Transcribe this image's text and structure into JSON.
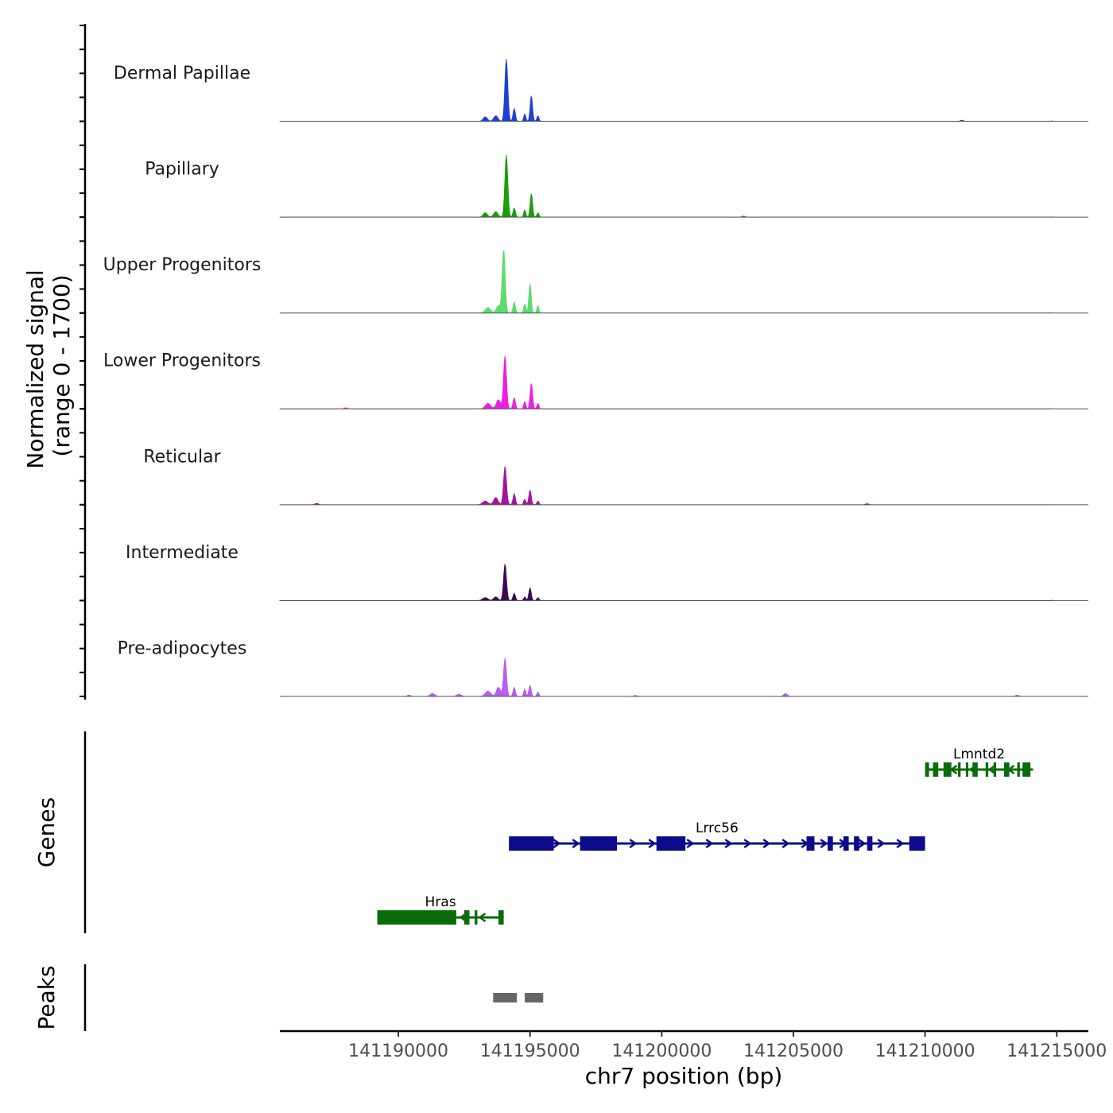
{
  "chart_data": {
    "type": "area",
    "title": "",
    "coverage_ylabel": "Normalized signal\n(range 0 - 1700)",
    "coverage_ylabel_lines": [
      "Normalized signal",
      "(range 0 - 1700)"
    ],
    "xlabel": "chr7 position (bp)",
    "xlim": [
      141185500,
      141216200
    ],
    "ylim": [
      0,
      1700
    ],
    "x_ticks": [
      141190000,
      141195000,
      141200000,
      141205000,
      141210000,
      141215000
    ],
    "x_tick_labels": [
      "141190000",
      "141195000",
      "141200000",
      "141205000",
      "141210000",
      "141215000"
    ],
    "series": [
      {
        "name": "Dermal Papillae",
        "color": "#1f3fd6",
        "peaks": [
          [
            141193300,
            120,
            80
          ],
          [
            141193700,
            150,
            80
          ],
          [
            141194100,
            1700,
            55
          ],
          [
            141194400,
            350,
            45
          ],
          [
            141194800,
            200,
            40
          ],
          [
            141195050,
            700,
            45
          ],
          [
            141195300,
            150,
            40
          ],
          [
            141214900,
            40,
            60
          ],
          [
            141211400,
            30,
            60
          ]
        ]
      },
      {
        "name": "Papillary",
        "color": "#1a9e0a",
        "peaks": [
          [
            141193300,
            120,
            80
          ],
          [
            141193700,
            150,
            80
          ],
          [
            141194100,
            1700,
            55
          ],
          [
            141194400,
            250,
            45
          ],
          [
            141194800,
            200,
            40
          ],
          [
            141195050,
            650,
            45
          ],
          [
            141195300,
            120,
            40
          ],
          [
            141203100,
            30,
            60
          ],
          [
            141214900,
            30,
            60
          ]
        ]
      },
      {
        "name": "Upper Progenitors",
        "color": "#5cdb6f",
        "peaks": [
          [
            141193400,
            150,
            100
          ],
          [
            141193800,
            200,
            80
          ],
          [
            141194000,
            1750,
            55
          ],
          [
            141194400,
            300,
            45
          ],
          [
            141194800,
            250,
            40
          ],
          [
            141195000,
            800,
            45
          ],
          [
            141195300,
            200,
            40
          ],
          [
            141214900,
            40,
            60
          ]
        ]
      },
      {
        "name": "Lower Progenitors",
        "color": "#ee1ee0",
        "peaks": [
          [
            141193400,
            150,
            100
          ],
          [
            141193800,
            250,
            80
          ],
          [
            141194050,
            1450,
            55
          ],
          [
            141194400,
            300,
            45
          ],
          [
            141194800,
            200,
            40
          ],
          [
            141195050,
            700,
            45
          ],
          [
            141195300,
            150,
            40
          ],
          [
            141188000,
            30,
            60
          ],
          [
            141214900,
            30,
            60
          ]
        ]
      },
      {
        "name": "Reticular",
        "color": "#a0179a",
        "peaks": [
          [
            141193300,
            100,
            100
          ],
          [
            141193700,
            200,
            80
          ],
          [
            141194050,
            1050,
            55
          ],
          [
            141194400,
            300,
            45
          ],
          [
            141194800,
            150,
            40
          ],
          [
            141195000,
            400,
            45
          ],
          [
            141195300,
            100,
            40
          ],
          [
            141186900,
            40,
            60
          ],
          [
            141207800,
            30,
            60
          ]
        ]
      },
      {
        "name": "Intermediate",
        "color": "#3a0a55",
        "peaks": [
          [
            141193300,
            80,
            100
          ],
          [
            141193700,
            100,
            80
          ],
          [
            141194050,
            1000,
            55
          ],
          [
            141194400,
            200,
            45
          ],
          [
            141194800,
            100,
            40
          ],
          [
            141195000,
            350,
            45
          ],
          [
            141195300,
            80,
            40
          ],
          [
            141214900,
            30,
            60
          ]
        ]
      },
      {
        "name": "Pre-adipocytes",
        "color": "#b85ff0",
        "peaks": [
          [
            141193400,
            150,
            100
          ],
          [
            141193800,
            250,
            80
          ],
          [
            141194050,
            1050,
            55
          ],
          [
            141194400,
            250,
            45
          ],
          [
            141194800,
            200,
            40
          ],
          [
            141195000,
            300,
            45
          ],
          [
            141195300,
            120,
            40
          ],
          [
            141191300,
            80,
            90
          ],
          [
            141192300,
            60,
            90
          ],
          [
            141204700,
            80,
            70
          ],
          [
            141190400,
            40,
            60
          ],
          [
            141199000,
            30,
            60
          ],
          [
            141213500,
            40,
            60
          ]
        ]
      }
    ],
    "genes_ylabel": "Genes",
    "genes": [
      {
        "name": "Lmntd2",
        "strand": "-",
        "color": "#0a6b0a",
        "row": 0,
        "start": 141210000,
        "end": 141214100,
        "exons": [
          [
            141210000,
            141210150
          ],
          [
            141210300,
            141210500
          ],
          [
            141210700,
            141211000
          ],
          [
            141211250,
            141211350
          ],
          [
            141211550,
            141211600
          ],
          [
            141211800,
            141212000
          ],
          [
            141212300,
            141212400
          ],
          [
            141212600,
            141212700
          ],
          [
            141213000,
            141213200
          ],
          [
            141213500,
            141213600
          ],
          [
            141213700,
            141214000
          ]
        ]
      },
      {
        "name": "Lrrc56",
        "strand": "+",
        "color": "#0a0a8a",
        "row": 1,
        "start": 141194200,
        "end": 141210000,
        "exons": [
          [
            141194200,
            141195900
          ],
          [
            141196900,
            141198300
          ],
          [
            141199800,
            141200900
          ],
          [
            141205500,
            141205800
          ],
          [
            141206300,
            141206500
          ],
          [
            141206900,
            141207100
          ],
          [
            141207300,
            141207500
          ],
          [
            141207800,
            141208000
          ],
          [
            141209400,
            141210000
          ]
        ]
      },
      {
        "name": "Hras",
        "strand": "-",
        "color": "#0a6b0a",
        "row": 2,
        "start": 141189200,
        "end": 141194000,
        "exons": [
          [
            141189200,
            141192200
          ],
          [
            141192500,
            141192700
          ],
          [
            141192900,
            141193000
          ],
          [
            141193800,
            141194000
          ]
        ]
      }
    ],
    "peaks_ylabel": "Peaks",
    "peak_regions": [
      [
        141193600,
        141194500
      ],
      [
        141194800,
        141195500
      ]
    ]
  }
}
